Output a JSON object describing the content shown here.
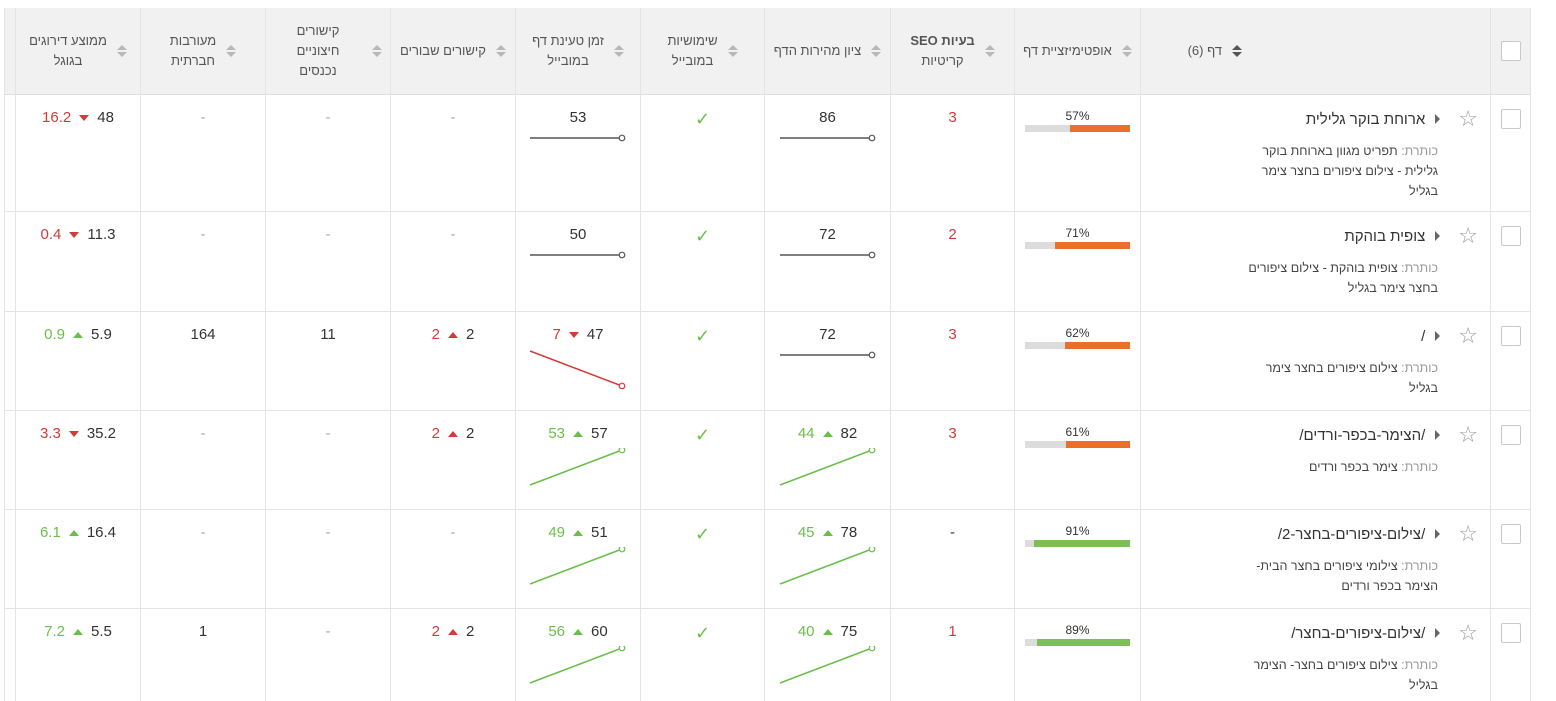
{
  "columns": {
    "page": "דף (6)",
    "optimization": "אופטימיזציית דף",
    "seo_issues": [
      "בעיות SEO",
      "קריטיות"
    ],
    "speed_score": "ציון מהירות הדף",
    "mobile": [
      "שימושיות",
      "במובייל"
    ],
    "mobile_load": [
      "זמן טעינת דף",
      "במובייל"
    ],
    "broken_links": "קישורים שבורים",
    "external_links": [
      "קישורים חיצוניים",
      "נכנסים"
    ],
    "social": [
      "מעורבות",
      "חברתית"
    ],
    "rank": [
      "ממוצע דירוגים",
      "בגוגל"
    ]
  },
  "meta_label": "כותרת:",
  "rows": [
    {
      "name": "ארוחת בוקר גלילית",
      "meta": "תפריט מגוון בארוחת בוקר גלילית - צילום ציפורים בחצר צימר בגליל",
      "opt": "57%",
      "opt_value": 57,
      "opt_color": "#e8702a",
      "seo": "3",
      "seo_color": "red",
      "speed": "86",
      "speed_delta": "",
      "speed_dir": "flat",
      "mobile": "✓",
      "load": "53",
      "load_delta": "",
      "load_dir": "flat",
      "broken": "-",
      "broken_delta": "",
      "ext": "-",
      "social": "-",
      "rank": "48",
      "rank_delta": "16.2",
      "rank_dir": "down"
    },
    {
      "name": "צופית בוהקת",
      "meta": "צופית בוהקת - צילום ציפורים בחצר צימר בגליל",
      "opt": "71%",
      "opt_value": 71,
      "opt_color": "#e8702a",
      "seo": "2",
      "seo_color": "red",
      "speed": "72",
      "speed_delta": "",
      "speed_dir": "flat",
      "mobile": "✓",
      "load": "50",
      "load_delta": "",
      "load_dir": "flat",
      "broken": "-",
      "broken_delta": "",
      "ext": "-",
      "social": "-",
      "rank": "11.3",
      "rank_delta": "0.4",
      "rank_dir": "down"
    },
    {
      "name": "/",
      "meta": "צילום ציפורים בחצר צימר בגליל",
      "opt": "62%",
      "opt_value": 62,
      "opt_color": "#e8702a",
      "seo": "3",
      "seo_color": "red",
      "speed": "72",
      "speed_delta": "",
      "speed_dir": "flat",
      "mobile": "✓",
      "load": "47",
      "load_delta": "7",
      "load_dir": "down",
      "broken": "2",
      "broken_delta": "2",
      "broken_dir": "up",
      "ext": "11",
      "social": "164",
      "rank": "5.9",
      "rank_delta": "0.9",
      "rank_dir": "up"
    },
    {
      "name": "/הצימר-בכפר-ורדים/",
      "meta": "צימר בכפר ורדים",
      "opt": "61%",
      "opt_value": 61,
      "opt_color": "#e8702a",
      "seo": "3",
      "seo_color": "red",
      "speed": "82",
      "speed_delta": "44",
      "speed_dir": "up",
      "mobile": "✓",
      "load": "57",
      "load_delta": "53",
      "load_dir": "up",
      "broken": "2",
      "broken_delta": "2",
      "broken_dir": "up",
      "ext": "-",
      "social": "-",
      "rank": "35.2",
      "rank_delta": "3.3",
      "rank_dir": "down"
    },
    {
      "name": "/צילום-ציפורים-בחצר-2/",
      "meta": "צילומי ציפורים בחצר הבית- הצימר בכפר ורדים",
      "opt": "91%",
      "opt_value": 91,
      "opt_color": "#7dbf57",
      "seo": "-",
      "seo_color": "dark",
      "speed": "78",
      "speed_delta": "45",
      "speed_dir": "up",
      "mobile": "✓",
      "load": "51",
      "load_delta": "49",
      "load_dir": "up",
      "broken": "-",
      "broken_delta": "",
      "ext": "-",
      "social": "-",
      "rank": "16.4",
      "rank_delta": "6.1",
      "rank_dir": "up"
    },
    {
      "name": "/צילום-ציפורים-בחצר/",
      "meta": "צילום ציפורים בחצר- הצימר בגליל",
      "opt": "89%",
      "opt_value": 89,
      "opt_color": "#7dbf57",
      "seo": "1",
      "seo_color": "red",
      "speed": "75",
      "speed_delta": "40",
      "speed_dir": "up",
      "mobile": "✓",
      "load": "60",
      "load_delta": "56",
      "load_dir": "up",
      "broken": "2",
      "broken_delta": "2",
      "broken_dir": "up",
      "ext": "-",
      "social": "1",
      "rank": "5.5",
      "rank_delta": "7.2",
      "rank_dir": "up"
    }
  ]
}
